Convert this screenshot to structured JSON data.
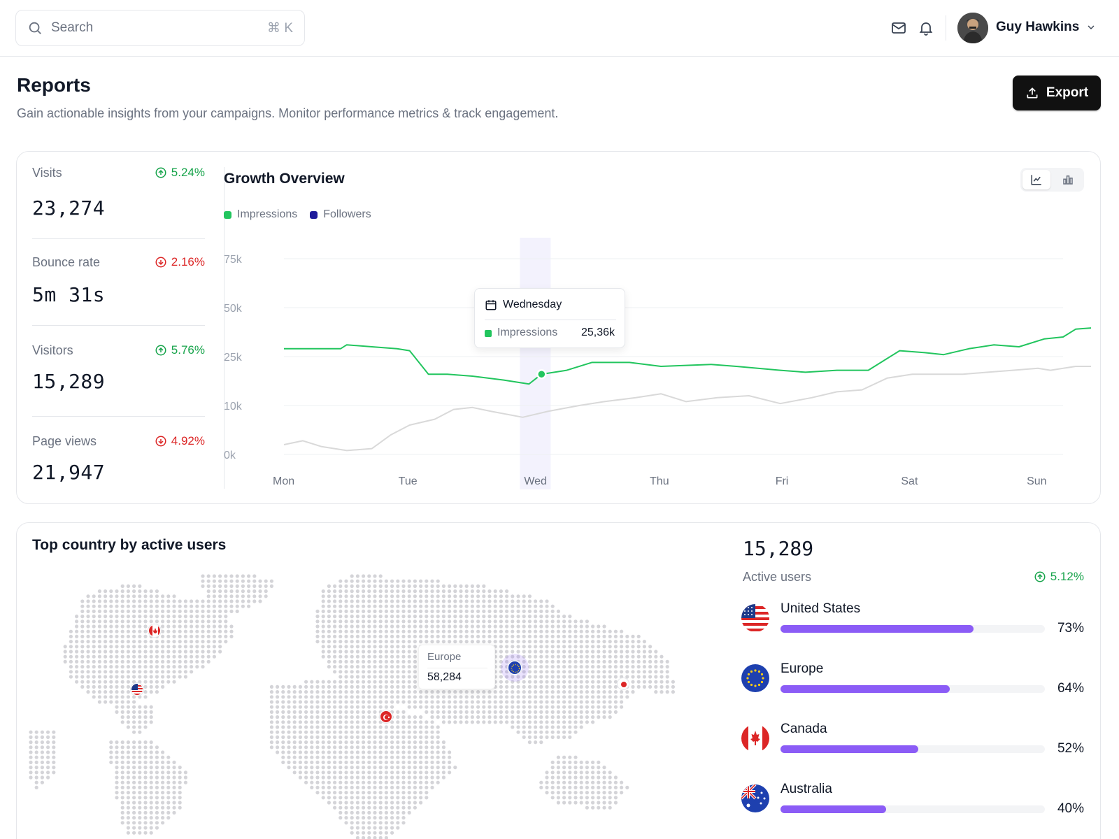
{
  "search": {
    "placeholder": "Search",
    "shortcut": "⌘ K"
  },
  "user": {
    "name": "Guy Hawkins"
  },
  "page": {
    "title": "Reports",
    "subtitle": "Gain actionable insights from your campaigns. Monitor performance metrics & track engagement.",
    "export_label": "Export"
  },
  "metrics": [
    {
      "label": "Visits",
      "value": "23,274",
      "change": "5.24%",
      "trend": "up"
    },
    {
      "label": "Bounce rate",
      "value": "5m 31s",
      "change": "2.16%",
      "trend": "down"
    },
    {
      "label": "Visitors",
      "value": "15,289",
      "change": "5.76%",
      "trend": "up"
    },
    {
      "label": "Page views",
      "value": "21,947",
      "change": "4.92%",
      "trend": "down"
    }
  ],
  "growth": {
    "title": "Growth Overview",
    "legend": [
      {
        "name": "Impressions",
        "color": "#22c55e"
      },
      {
        "name": "Followers",
        "color": "#1e1b9b"
      }
    ],
    "tooltip": {
      "day": "Wednesday",
      "label": "Impressions",
      "value": "25,36k"
    }
  },
  "chart_data": {
    "type": "line",
    "x": [
      "Mon",
      "Tue",
      "Wed",
      "Thu",
      "Fri",
      "Sat",
      "Sun"
    ],
    "ytick_labels": [
      "0k",
      "10k",
      "25k",
      "50k",
      "75k"
    ],
    "highlight": "Wed",
    "series": [
      {
        "name": "Impressions",
        "color": "#22c55e",
        "points": [
          [
            0,
            0.54
          ],
          [
            0.06,
            0.54
          ],
          [
            0.2,
            0.54
          ],
          [
            0.45,
            0.54
          ],
          [
            0.5,
            0.56
          ],
          [
            0.7,
            0.55
          ],
          [
            0.9,
            0.54
          ],
          [
            1.0,
            0.53
          ],
          [
            1.15,
            0.41
          ],
          [
            1.3,
            0.41
          ],
          [
            1.5,
            0.4
          ],
          [
            1.75,
            0.38
          ],
          [
            1.95,
            0.36
          ],
          [
            2.05,
            0.41
          ],
          [
            2.25,
            0.43
          ],
          [
            2.45,
            0.47
          ],
          [
            2.75,
            0.47
          ],
          [
            3.0,
            0.45
          ],
          [
            3.4,
            0.46
          ],
          [
            3.6,
            0.45
          ],
          [
            3.95,
            0.43
          ],
          [
            4.15,
            0.42
          ],
          [
            4.4,
            0.43
          ],
          [
            4.65,
            0.43
          ],
          [
            4.9,
            0.53
          ],
          [
            5.1,
            0.52
          ],
          [
            5.25,
            0.51
          ],
          [
            5.45,
            0.54
          ],
          [
            5.65,
            0.56
          ],
          [
            5.85,
            0.55
          ],
          [
            6.05,
            0.59
          ],
          [
            6.2,
            0.6
          ],
          [
            6.3,
            0.64
          ],
          [
            6.5,
            0.65
          ],
          [
            6.62,
            0.65
          ],
          [
            6.7,
            0.66
          ]
        ]
      },
      {
        "name": "Followers",
        "color": "#d9d9d9",
        "points": [
          [
            0,
            0.05
          ],
          [
            0.15,
            0.07
          ],
          [
            0.3,
            0.04
          ],
          [
            0.5,
            0.02
          ],
          [
            0.7,
            0.03
          ],
          [
            0.85,
            0.1
          ],
          [
            1.0,
            0.15
          ],
          [
            1.2,
            0.18
          ],
          [
            1.35,
            0.23
          ],
          [
            1.5,
            0.24
          ],
          [
            1.65,
            0.22
          ],
          [
            1.9,
            0.19
          ],
          [
            2.1,
            0.22
          ],
          [
            2.35,
            0.25
          ],
          [
            2.55,
            0.27
          ],
          [
            2.8,
            0.29
          ],
          [
            3.0,
            0.31
          ],
          [
            3.2,
            0.27
          ],
          [
            3.45,
            0.29
          ],
          [
            3.7,
            0.3
          ],
          [
            3.95,
            0.26
          ],
          [
            4.2,
            0.29
          ],
          [
            4.4,
            0.32
          ],
          [
            4.6,
            0.33
          ],
          [
            4.8,
            0.39
          ],
          [
            5.0,
            0.41
          ],
          [
            5.2,
            0.41
          ],
          [
            5.4,
            0.41
          ],
          [
            5.6,
            0.42
          ],
          [
            5.8,
            0.43
          ],
          [
            6.0,
            0.44
          ],
          [
            6.1,
            0.43
          ],
          [
            6.3,
            0.45
          ],
          [
            6.5,
            0.45
          ],
          [
            6.7,
            0.45
          ]
        ]
      }
    ]
  },
  "countries": {
    "title": "Top country by active users",
    "total": "15,289",
    "label": "Active users",
    "change": "5.12%",
    "list": [
      {
        "name": "United States",
        "pct": "73%",
        "value": 0.73
      },
      {
        "name": "Europe",
        "pct": "64%",
        "value": 0.64
      },
      {
        "name": "Canada",
        "pct": "52%",
        "value": 0.52
      },
      {
        "name": "Australia",
        "pct": "40%",
        "value": 0.4
      }
    ],
    "map_tooltip": {
      "label": "Europe",
      "value": "58,284"
    }
  }
}
